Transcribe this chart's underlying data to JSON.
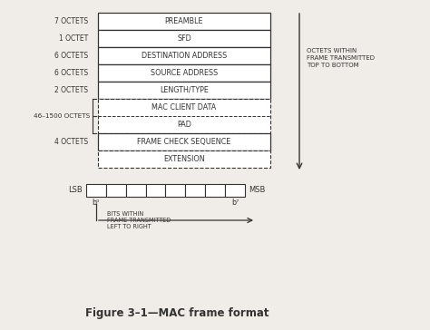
{
  "bg_color": "#f0ede8",
  "frame_color": "#333333",
  "title": "Figure 3–1—MAC frame format",
  "title_fontsize": 8.5,
  "rows_solid": [
    {
      "label": "7 OCTETS",
      "text": "PREAMBLE"
    },
    {
      "label": "1 OCTET",
      "text": "SFD"
    },
    {
      "label": "6 OCTETS",
      "text": "DESTINATION ADDRESS"
    },
    {
      "label": "6 OCTETS",
      "text": "SOURCE ADDRESS"
    },
    {
      "label": "2 OCTETS",
      "text": "LENGTH/TYPE"
    }
  ],
  "rows_dashed": [
    {
      "text": "MAC CLIENT DATA"
    },
    {
      "text": "PAD"
    }
  ],
  "row_solid2": {
    "label": "4 OCTETS",
    "text": "FRAME CHECK SEQUENCE"
  },
  "row_dashed2": {
    "text": "EXTENSION"
  },
  "dashed_label": "46–1500 OCTETS",
  "right_text_lines": [
    "OCTETS WITHIN",
    "FRAME TRANSMITTED",
    "TOP TO BOTTOM"
  ],
  "lsb_label": "LSB",
  "msb_label": "MSB",
  "bit_count": 8,
  "b0_label": "b⁰",
  "b7_label": "b⁷",
  "bottom_text_lines": [
    "BITS WITHIN",
    "FRAME TRANSMITTED",
    "LEFT TO RIGHT"
  ],
  "font_size_labels": 5.5,
  "font_size_box": 5.8,
  "font_size_side": 5.0,
  "font_size_title": 8.5
}
